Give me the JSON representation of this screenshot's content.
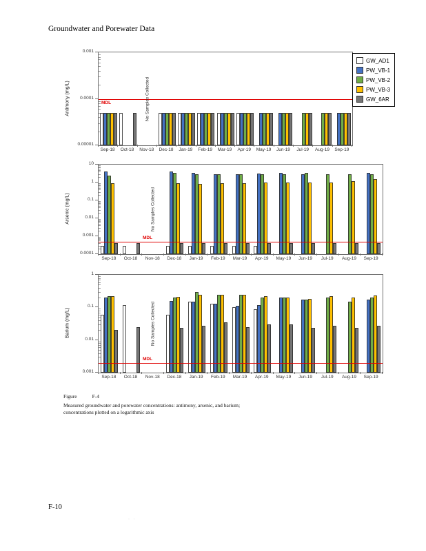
{
  "page": {
    "header": "Groundwater and Porewater Data",
    "page_number": "F-10",
    "footer_mark": "· ·",
    "caption": {
      "label": "Figure",
      "number": "F-4",
      "line1": "Measured groundwater and porewater concentrations: antimony, arsenic, and barium;",
      "line2": "concentrations plotted on a logarithmic axis"
    }
  },
  "legend": {
    "items": [
      {
        "label": "GW_AD1",
        "color": "#FFFFFF"
      },
      {
        "label": "PW_VB-1",
        "color": "#4472C4"
      },
      {
        "label": "PW_VB-2",
        "color": "#70AD47"
      },
      {
        "label": "PW_VB-3",
        "color": "#FFC000"
      },
      {
        "label": "GW_6AR",
        "color": "#757575"
      }
    ]
  },
  "chart_data": [
    {
      "type": "bar",
      "title": "",
      "ylabel": "Antimony (mg/L)",
      "xlabel": "",
      "yscale": "log",
      "ylim": [
        1e-05,
        0.001
      ],
      "yticks": [
        "0.001",
        "0.0001",
        "0.00001"
      ],
      "grid": false,
      "legend_position": "right",
      "mdl": {
        "label": "MDL",
        "value": 0.0001,
        "color": "#e00000"
      },
      "no_data_note": {
        "month": "Nov-18",
        "text": "No Samples Collected"
      },
      "categories": [
        "Sep-18",
        "Oct-18",
        "Nov-18",
        "Dec-18",
        "Jan-19",
        "Feb-19",
        "Mar-19",
        "Apr-19",
        "May-19",
        "Jun-19",
        "Jul-19",
        "Aug-19",
        "Sep-19"
      ],
      "series": [
        {
          "name": "GW_AD1",
          "values": [
            5e-05,
            5e-05,
            null,
            5e-05,
            5e-05,
            5e-05,
            5e-05,
            5e-05,
            null,
            null,
            null,
            null,
            null
          ]
        },
        {
          "name": "PW_VB-1",
          "values": [
            5e-05,
            null,
            null,
            5e-05,
            5e-05,
            5e-05,
            5e-05,
            5e-05,
            5e-05,
            5e-05,
            null,
            null,
            5e-05
          ]
        },
        {
          "name": "PW_VB-2",
          "values": [
            5e-05,
            null,
            null,
            5e-05,
            5e-05,
            5e-05,
            5e-05,
            5e-05,
            5e-05,
            5e-05,
            5e-05,
            5e-05,
            5e-05
          ]
        },
        {
          "name": "PW_VB-3",
          "values": [
            5e-05,
            null,
            null,
            5e-05,
            5e-05,
            5e-05,
            5e-05,
            5e-05,
            5e-05,
            5e-05,
            5e-05,
            5e-05,
            5e-05
          ]
        },
        {
          "name": "GW_6AR",
          "values": [
            5e-05,
            5e-05,
            null,
            5e-05,
            5e-05,
            5e-05,
            5e-05,
            5e-05,
            5e-05,
            5e-05,
            5e-05,
            5e-05,
            5e-05
          ]
        }
      ]
    },
    {
      "type": "bar",
      "title": "",
      "ylabel": "Arsenic (mg/L)",
      "xlabel": "",
      "yscale": "log",
      "ylim": [
        0.0001,
        10
      ],
      "yticks": [
        "10",
        "1",
        "0.1",
        "0.01",
        "0.001",
        "0.0001"
      ],
      "grid": false,
      "mdl": {
        "label": "MDL",
        "value": 0.0005,
        "color": "#e00000"
      },
      "no_data_note": {
        "month": "Nov-18",
        "text": "No Samples Collected"
      },
      "categories": [
        "Sep-18",
        "Oct-18",
        "Nov-18",
        "Dec-18",
        "Jan-19",
        "Feb-19",
        "Mar-19",
        "Apr-19",
        "May-19",
        "Jun-19",
        "Jul-19",
        "Aug-19",
        "Sep-19"
      ],
      "series": [
        {
          "name": "GW_AD1",
          "values": [
            0.0003,
            0.0003,
            null,
            0.0003,
            0.0003,
            0.0003,
            0.0003,
            0.0003,
            null,
            null,
            null,
            null,
            null
          ]
        },
        {
          "name": "PW_VB-1",
          "values": [
            4,
            null,
            null,
            4,
            3.5,
            3,
            3,
            3.2,
            3.5,
            3,
            null,
            null,
            3.5
          ]
        },
        {
          "name": "PW_VB-2",
          "values": [
            2.5,
            null,
            null,
            3.5,
            3,
            2.8,
            3,
            3,
            3,
            3.5,
            2.8,
            3,
            3
          ]
        },
        {
          "name": "PW_VB-3",
          "values": [
            0.9,
            null,
            null,
            0.9,
            0.85,
            0.9,
            0.9,
            1,
            1,
            1,
            1,
            1.2,
            1.5
          ]
        },
        {
          "name": "GW_6AR",
          "values": [
            0.0004,
            0.0004,
            null,
            0.0004,
            0.0004,
            0.0004,
            0.0004,
            0.0004,
            0.0004,
            0.0004,
            0.0004,
            0.0004,
            0.0004
          ]
        }
      ]
    },
    {
      "type": "bar",
      "title": "",
      "ylabel": "Barium (mg/L)",
      "xlabel": "",
      "yscale": "log",
      "ylim": [
        0.001,
        1
      ],
      "yticks": [
        "1",
        "0.1",
        "0.01",
        "0.001"
      ],
      "grid": false,
      "mdl": {
        "label": "MDL",
        "value": 0.002,
        "color": "#e00000"
      },
      "no_data_note": {
        "month": "Nov-18",
        "text": "No Samples Collected"
      },
      "categories": [
        "Sep-18",
        "Oct-18",
        "Nov-18",
        "Dec-18",
        "Jan-19",
        "Feb-19",
        "Mar-19",
        "Apr-19",
        "May-19",
        "Jun-19",
        "Jul-19",
        "Aug-19",
        "Sep-19"
      ],
      "series": [
        {
          "name": "GW_AD1",
          "values": [
            0.06,
            0.12,
            null,
            0.06,
            0.15,
            0.13,
            0.1,
            0.09,
            null,
            null,
            null,
            null,
            null
          ]
        },
        {
          "name": "PW_VB-1",
          "values": [
            0.2,
            null,
            null,
            0.16,
            0.15,
            0.13,
            0.11,
            0.12,
            0.2,
            0.17,
            null,
            null,
            0.17
          ]
        },
        {
          "name": "PW_VB-2",
          "values": [
            0.22,
            null,
            null,
            0.2,
            0.3,
            0.25,
            0.25,
            0.2,
            0.2,
            0.17,
            0.2,
            0.15,
            0.2
          ]
        },
        {
          "name": "PW_VB-3",
          "values": [
            0.22,
            null,
            null,
            0.21,
            0.25,
            0.25,
            0.25,
            0.22,
            0.2,
            0.18,
            0.22,
            0.2,
            0.23
          ]
        },
        {
          "name": "GW_6AR",
          "values": [
            0.02,
            0.025,
            null,
            0.024,
            0.028,
            0.035,
            0.025,
            0.03,
            0.03,
            0.024,
            0.028,
            0.024,
            0.028
          ]
        }
      ]
    }
  ]
}
